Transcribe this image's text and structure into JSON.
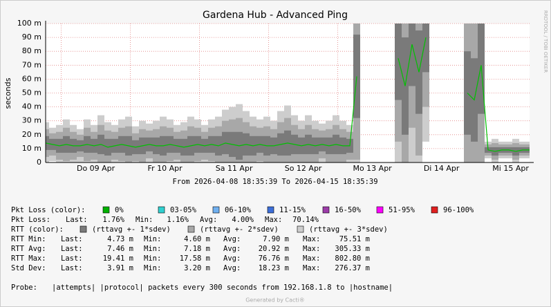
{
  "chart_data": {
    "type": "smoke",
    "title": "Gardena Hub - Advanced Ping",
    "y_label": "seconds",
    "side_label": "RRDTOOL / TOBI OETIKER",
    "time_range": "From 2026-04-08 18:35:39 To 2026-04-15 18:35:39",
    "x_labels": [
      "Do 09 Apr",
      "Fr 10 Apr",
      "Sa 11 Apr",
      "So 12 Apr",
      "Mo 13 Apr",
      "Di 14 Apr",
      "Mi 15 Apr"
    ],
    "ylim": [
      0,
      0.1
    ],
    "yticks": [
      0,
      {
        "value": 0.01,
        "label": "10 m"
      },
      {
        "value": 0.02,
        "label": "20 m"
      },
      {
        "value": 0.03,
        "label": "30 m"
      },
      {
        "value": 0.04,
        "label": "40 m"
      },
      {
        "value": 0.05,
        "label": "50 m"
      },
      {
        "value": 0.06,
        "label": "60 m"
      },
      {
        "value": 0.07,
        "label": "70 m"
      },
      {
        "value": 0.08,
        "label": "80 m"
      },
      {
        "value": 0.09,
        "label": "90 m"
      },
      {
        "value": 0.1,
        "label": "100 m"
      }
    ],
    "grid": true,
    "line_color": "#00c000",
    "band_colors": [
      "#7a7a7a",
      "#a8a8a8",
      "#cdcdcd"
    ],
    "median": [
      0.014,
      0.013,
      0.012,
      0.013,
      0.012,
      0.012,
      0.013,
      0.012,
      0.013,
      0.011,
      0.012,
      0.013,
      0.012,
      0.011,
      0.012,
      0.013,
      0.012,
      0.012,
      0.013,
      0.012,
      0.011,
      0.012,
      0.013,
      0.012,
      0.013,
      0.012,
      0.014,
      0.013,
      0.012,
      0.013,
      0.012,
      0.013,
      0.012,
      0.012,
      0.013,
      0.014,
      0.013,
      0.012,
      0.013,
      0.012,
      0.013,
      0.012,
      0.013,
      0.012,
      0.012,
      0.062,
      null,
      null,
      null,
      null,
      null,
      0.075,
      0.055,
      0.085,
      0.065,
      0.09,
      null,
      null,
      null,
      null,
      null,
      0.05,
      0.045,
      0.07,
      0.009,
      0.008,
      0.009,
      0.009,
      0.008,
      0.009,
      0.009
    ],
    "sdev": [
      0.005,
      0.004,
      0.005,
      0.006,
      0.005,
      0.004,
      0.006,
      0.005,
      0.007,
      0.006,
      0.005,
      0.006,
      0.007,
      0.005,
      0.006,
      0.005,
      0.006,
      0.007,
      0.006,
      0.005,
      0.006,
      0.007,
      0.006,
      0.005,
      0.006,
      0.007,
      0.008,
      0.009,
      0.01,
      0.008,
      0.007,
      0.006,
      0.007,
      0.006,
      0.008,
      0.009,
      0.007,
      0.006,
      0.007,
      0.006,
      0.005,
      0.006,
      0.007,
      0.006,
      0.005,
      0.03,
      null,
      null,
      null,
      null,
      null,
      0.03,
      0.035,
      0.03,
      0.03,
      0.025,
      null,
      null,
      null,
      null,
      null,
      0.03,
      0.03,
      0.035,
      0.002,
      0.003,
      0.002,
      0.002,
      0.003,
      0.002,
      0.002
    ]
  },
  "legend": {
    "loss_title": "Pkt Loss (color):",
    "loss_items": [
      {
        "label": "0%",
        "color": "#00b000"
      },
      {
        "label": "03-05%",
        "color": "#30d0d0"
      },
      {
        "label": "06-10%",
        "color": "#70b0f0"
      },
      {
        "label": "11-15%",
        "color": "#3c6ed8"
      },
      {
        "label": "16-50%",
        "color": "#9c3ca8"
      },
      {
        "label": "51-95%",
        "color": "#ff00ff"
      },
      {
        "label": "96-100%",
        "color": "#e02020"
      }
    ],
    "rtt_title": "RTT (color):",
    "rtt_items": [
      {
        "label": "(rttavg +- 1*sdev)",
        "color": "#7a7a7a"
      },
      {
        "label": "(rttavg +- 2*sdev)",
        "color": "#a8a8a8"
      },
      {
        "label": "(rttavg +- 3*sdev)",
        "color": "#cdcdcd"
      }
    ]
  },
  "stats": {
    "loss": {
      "label": "Pkt Loss:",
      "cells": [
        "Last:",
        "1.76%",
        "Min:",
        "1.16%",
        "Avg:",
        "4.00%",
        "Max:",
        "70.14%"
      ]
    },
    "rows": [
      {
        "label": "RTT Min:",
        "cells": [
          "Last:",
          "4.73 m",
          "Min:",
          "4.60 m",
          "Avg:",
          "7.90 m",
          "Max:",
          "75.51 m"
        ]
      },
      {
        "label": "RTT Avg:",
        "cells": [
          "Last:",
          "7.46 m",
          "Min:",
          "7.18 m",
          "Avg:",
          "20.92 m",
          "Max:",
          "305.33 m"
        ]
      },
      {
        "label": "RTT Max:",
        "cells": [
          "Last:",
          "19.41 m",
          "Min:",
          "17.58 m",
          "Avg:",
          "76.76 m",
          "Max:",
          "802.80 m"
        ]
      },
      {
        "label": "Std Dev:",
        "cells": [
          "Last:",
          "3.91 m",
          "Min:",
          "3.20 m",
          "Avg:",
          "18.23 m",
          "Max:",
          "276.37 m"
        ]
      }
    ]
  },
  "probe": {
    "label": "Probe:",
    "text": "|attempts| |protocol| packets every 300 seconds from 192.168.1.8 to |hostname|"
  },
  "footer": "Generated by Cacti®"
}
